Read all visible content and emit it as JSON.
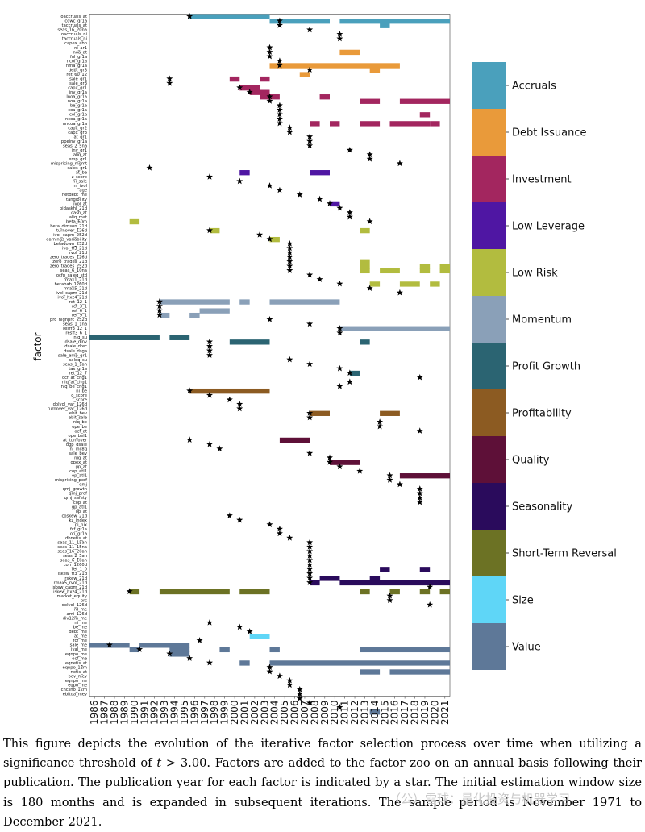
{
  "chart_data": {
    "type": "timeline",
    "ylabel": "factor",
    "years": [
      1986,
      1987,
      1988,
      1989,
      1990,
      1991,
      1992,
      1993,
      1994,
      1995,
      1996,
      1997,
      1998,
      1999,
      2000,
      2001,
      2002,
      2003,
      2004,
      2005,
      2006,
      2007,
      2008,
      2009,
      2010,
      2011,
      2012,
      2013,
      2014,
      2015,
      2016,
      2017,
      2018,
      2019,
      2020,
      2021
    ],
    "categories": [
      {
        "name": "Accruals",
        "color": "#4aa0bc"
      },
      {
        "name": "Debt Issuance",
        "color": "#e99a3a"
      },
      {
        "name": "Investment",
        "color": "#a3265f"
      },
      {
        "name": "Low Leverage",
        "color": "#4f16a3"
      },
      {
        "name": "Low Risk",
        "color": "#b2bc3f"
      },
      {
        "name": "Momentum",
        "color": "#8aa0b8"
      },
      {
        "name": "Profit Growth",
        "color": "#2b6472"
      },
      {
        "name": "Profitability",
        "color": "#8c5b22"
      },
      {
        "name": "Quality",
        "color": "#5e1038"
      },
      {
        "name": "Seasonality",
        "color": "#2a0b5c"
      },
      {
        "name": "Short-Term Reversal",
        "color": "#6c7224"
      },
      {
        "name": "Size",
        "color": "#5fd6f7"
      },
      {
        "name": "Value",
        "color": "#5e7898"
      }
    ],
    "factors": [
      "oaccruals_at",
      "cowc_gr1a",
      "taccruals_at",
      "seas_16_20na",
      "oaccruals_ni",
      "taccruals_ni",
      "capex_abn",
      "ni_ar1",
      "noa_at",
      "fnl_gr1a",
      "ncol_gr1a",
      "nfna_gr1a",
      "debt_gr3",
      "ret_60_12",
      "sale_gr1",
      "sale_gr3",
      "capx_gr1",
      "inv_gr1a",
      "lnoa_gr1a",
      "noa_gr1a",
      "be_gr1a",
      "coa_gr1a",
      "col_gr1a",
      "ncoa_gr1a",
      "nncoa_gr1a",
      "capx_gr2",
      "capx_gr3",
      "at_gr1",
      "ppeinv_gr1a",
      "seas_2_5na",
      "inv_gr1",
      "aliq_at",
      "emp_gr1",
      "mispricing_mgmt",
      "sales_gr1",
      "at_be",
      "z_score",
      "ni_sale",
      "ni_ivol",
      "age",
      "netdebt_me",
      "tangibility",
      "ivol_at",
      "bidaskhl_21d",
      "cash_at",
      "aliq_mat",
      "beta_60m",
      "beta_dimson_21d",
      "turnover_126d",
      "ivol_capm_252d",
      "earnings_variability",
      "betadown_252d",
      "ivol_ff3_21d",
      "rvol_21d",
      "zero_trades_126d",
      "zero_trades_21d",
      "zero_trades_252d",
      "seas_6_10na",
      "ocfq_saleq_std",
      "rmax1_21d",
      "betabab_1260d",
      "rmax5_21d",
      "ivol_capm_21d",
      "ivol_hxz4_21d",
      "ret_12_1",
      "ret_3_1",
      "ret_6_1",
      "ret_9_1",
      "prc_highprc_252d",
      "seas_1_1na",
      "resff3_12_1",
      "resff3_6_1",
      "niq_su",
      "dsale_dinv",
      "dsale_drec",
      "dsale_dsga",
      "sale_emp_gr1",
      "saleq_su",
      "seas_1_1an",
      "tax_gr1a",
      "ret_12_7",
      "ocf_at_chg1",
      "niq_at_chg1",
      "niq_be_chg1",
      "ni_be",
      "o_score",
      "f_score",
      "dolvol_var_126d",
      "turnover_var_126d",
      "ebit_bev",
      "ebit_sale",
      "niq_be",
      "ope_be",
      "ocf_at",
      "ope_bel1",
      "at_turnover",
      "dgp_dsale",
      "ni_inc8q",
      "sale_bev",
      "niq_at",
      "opex_at",
      "gp_at",
      "cop_atl1",
      "op_atl1",
      "mispricing_perf",
      "qmj",
      "qmj_growth",
      "qmj_prof",
      "qmj_safety",
      "cop_at",
      "gp_atl1",
      "op_at",
      "coskew_21d",
      "kz_index",
      "pi_nix",
      "fcf_gr1a",
      "oti_gr1a",
      "dbnetis_at",
      "seas_11_15an",
      "seas_11_15na",
      "seas_16_20an",
      "seas_2_5an",
      "seas_6_10an",
      "corr_1260d",
      "ret_1_0",
      "iskew_ff3_21d",
      "rskew_21d",
      "rmax5_rvol_21d",
      "iskew_capm_21d",
      "iskew_hxz4_21d",
      "market_equity",
      "prc",
      "dolvol_126d",
      "rd_me",
      "ami_126d",
      "div12m_me",
      "ni_me",
      "be_me",
      "debt_me",
      "at_me",
      "fcf_me",
      "sale_me",
      "ival_me",
      "eqnpo_me",
      "ocf_me",
      "eqnetis_at",
      "eqnpo_12m",
      "netis_at",
      "bev_mev",
      "eqnpo_me",
      "eqpo_me",
      "chcsho_12m",
      "ebitda_mev"
    ],
    "legend_position": "right"
  },
  "caption": {
    "before_t": "This figure depicts the evolution of the iterative factor selection process over time when utilizing a significance threshold of ",
    "t": "t",
    "after_t": " > 3.00. Factors are added to the factor zoo on an annual basis following their publication. The publication year for each factor is indicated by a star. The initial estimation window size is 180 months and is expanded in subsequent iterations. The sample period is November 1971 to December 2021."
  },
  "watermark": "（公）雪球：量化投资与机器学习"
}
